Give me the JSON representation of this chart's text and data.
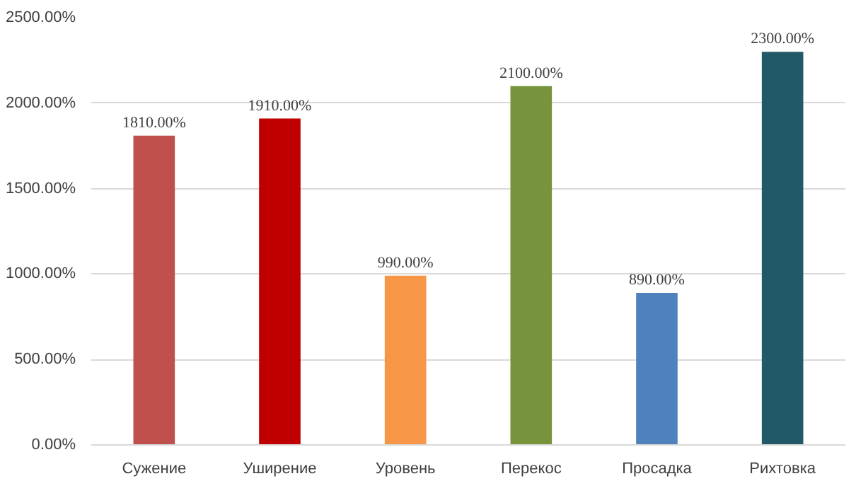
{
  "chart_data": {
    "type": "bar",
    "categories": [
      "Сужение",
      "Уширение",
      "Уровень",
      "Перекос",
      "Просадка",
      "Рихтовка"
    ],
    "values": [
      1810,
      1910,
      990,
      2100,
      890,
      2300
    ],
    "colors": [
      "#c0504d",
      "#c00000",
      "#f79646",
      "#77933c",
      "#4f81bd",
      "#215968"
    ],
    "value_labels": [
      "1810.00%",
      "1910.00%",
      "990.00%",
      "2100.00%",
      "890.00%",
      "2300.00%"
    ],
    "ylim": [
      0,
      2500
    ],
    "yticks": [
      {
        "value": 0,
        "label": "0.00%"
      },
      {
        "value": 500,
        "label": "500.00%"
      },
      {
        "value": 1000,
        "label": "1000.00%"
      },
      {
        "value": 1500,
        "label": "1500.00%"
      },
      {
        "value": 2000,
        "label": "2000.00%"
      },
      {
        "value": 2500,
        "label": "2500.00%"
      }
    ],
    "grid": "y"
  }
}
